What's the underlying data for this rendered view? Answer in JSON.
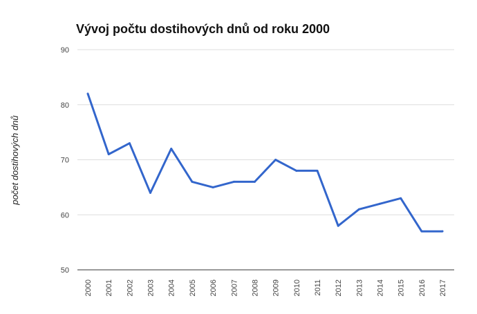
{
  "chart_data": {
    "type": "line",
    "title": "Vývoj počtu dostihových dnů od roku 2000",
    "xlabel": "",
    "ylabel": "počet dostihových dnů",
    "x": [
      "2000",
      "2001",
      "2002",
      "2003",
      "2004",
      "2005",
      "2006",
      "2007",
      "2008",
      "2009",
      "2010",
      "2011",
      "2012",
      "2013",
      "2014",
      "2015",
      "2016",
      "2017"
    ],
    "series": [
      {
        "values": [
          82,
          71,
          73,
          64,
          72,
          66,
          65,
          66,
          66,
          70,
          68,
          68,
          58,
          61,
          62,
          63,
          57,
          57
        ]
      }
    ],
    "ylim": [
      50,
      90
    ],
    "yticks": [
      50,
      60,
      70,
      80,
      90
    ],
    "grid": true,
    "legend": "none",
    "line_color": "#3366cc",
    "grid_color": "#dddddd"
  }
}
